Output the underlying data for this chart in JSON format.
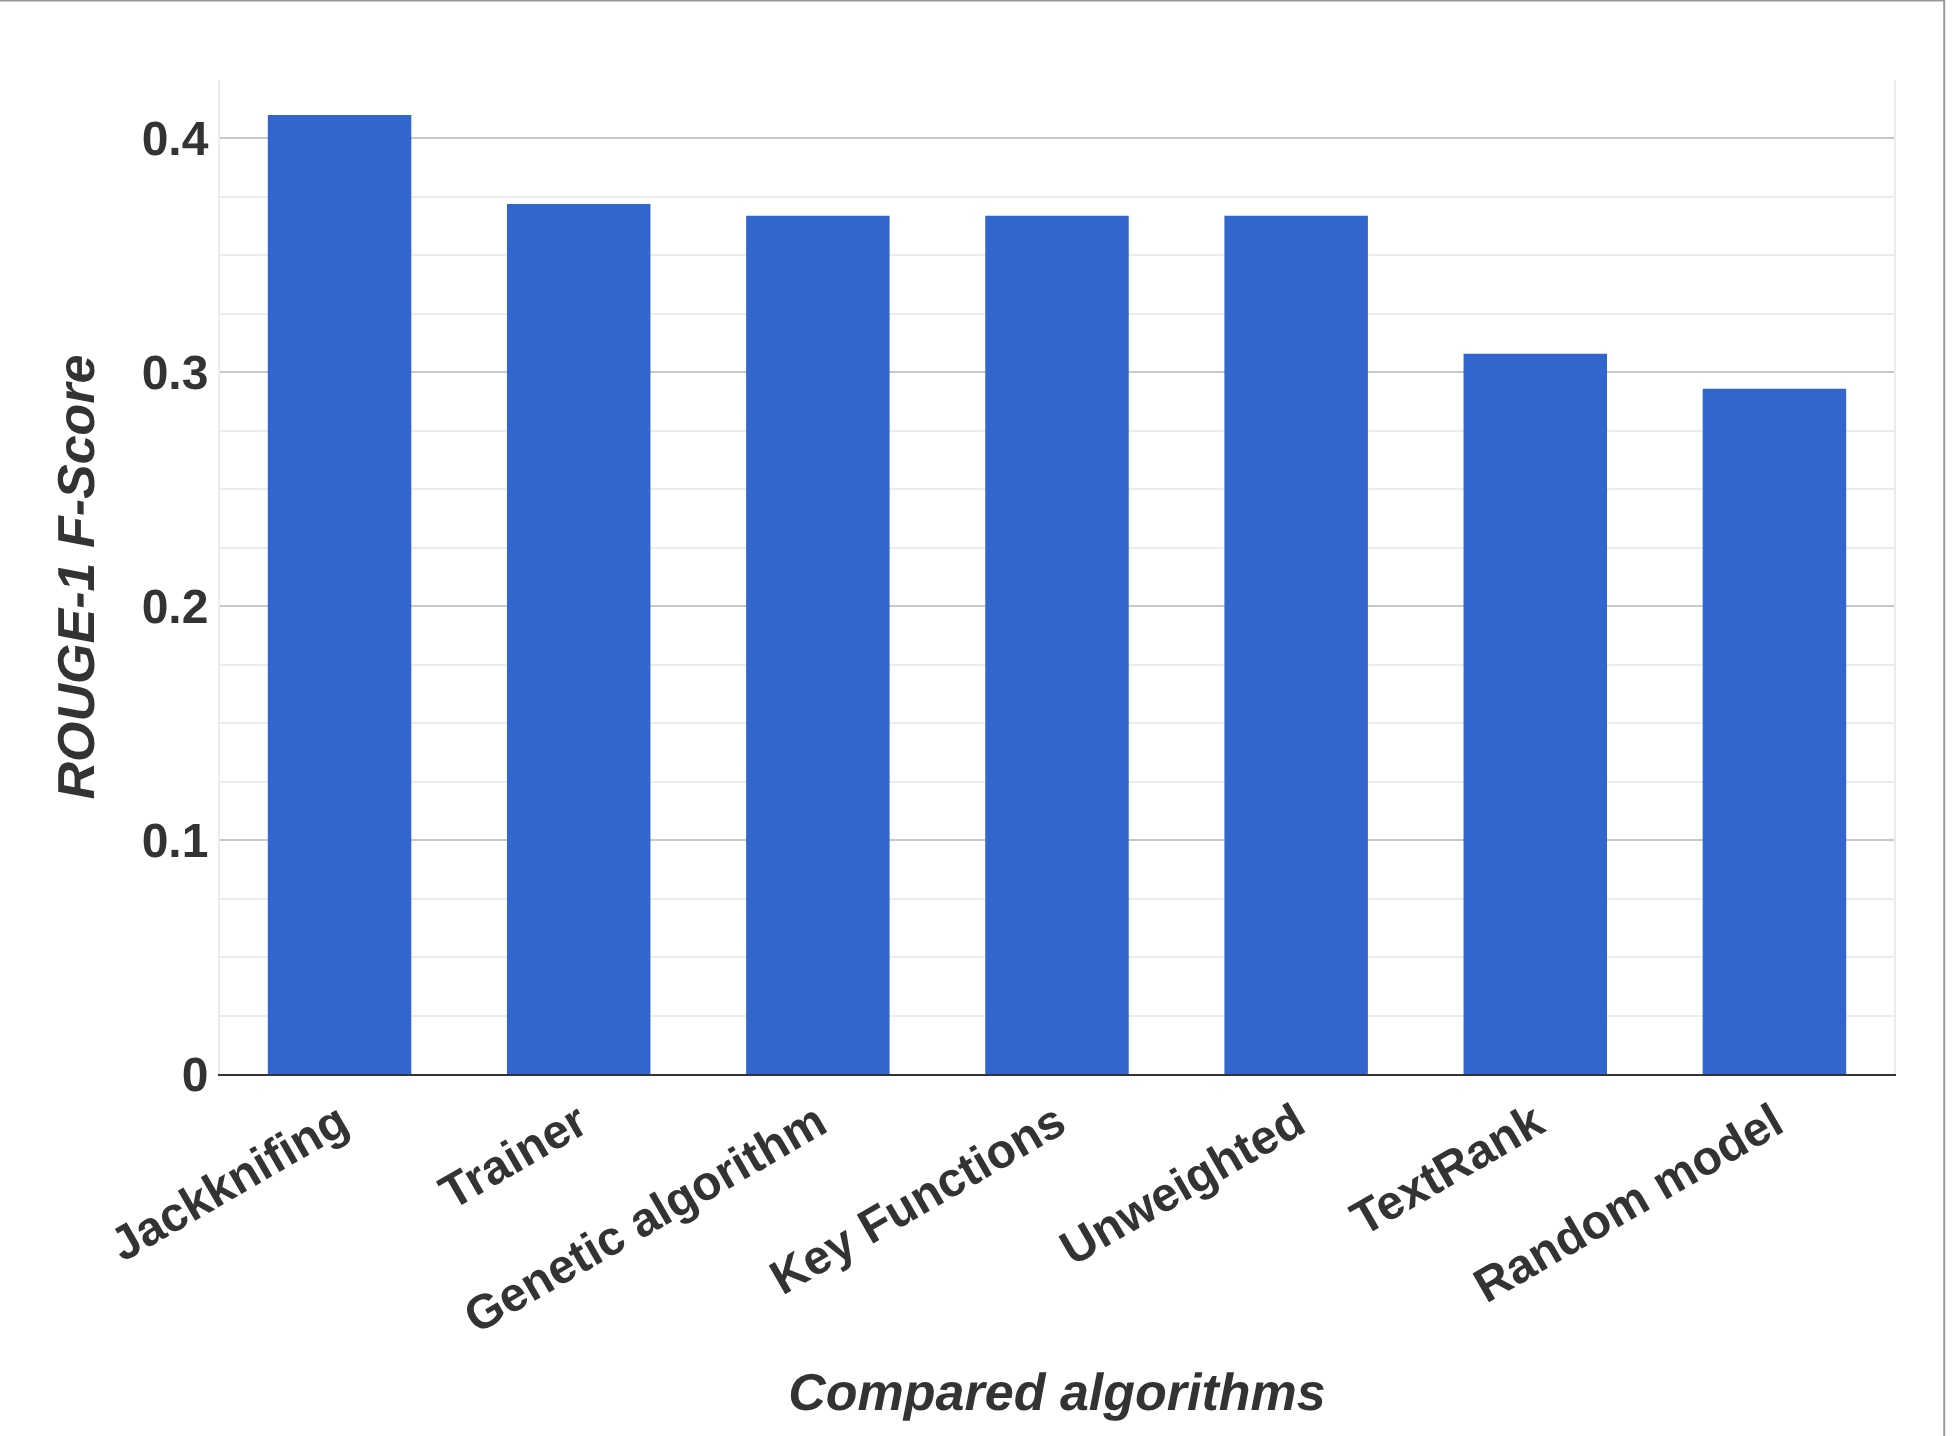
{
  "chart_data": {
    "type": "bar",
    "xlabel": "Compared algorithms",
    "ylabel": "ROUGE-1 F-Score",
    "categories": [
      "Jackknifing",
      "Trainer",
      "Genetic algorithm",
      "Key Functions",
      "Unweighted",
      "TextRank",
      "Random model"
    ],
    "values": [
      0.41,
      0.372,
      0.367,
      0.367,
      0.367,
      0.308,
      0.293
    ],
    "color": "#3366cc",
    "ylim": [
      0,
      0.425
    ],
    "yticks": [
      0,
      0.1,
      0.2,
      0.3,
      0.4
    ],
    "grid": true
  }
}
